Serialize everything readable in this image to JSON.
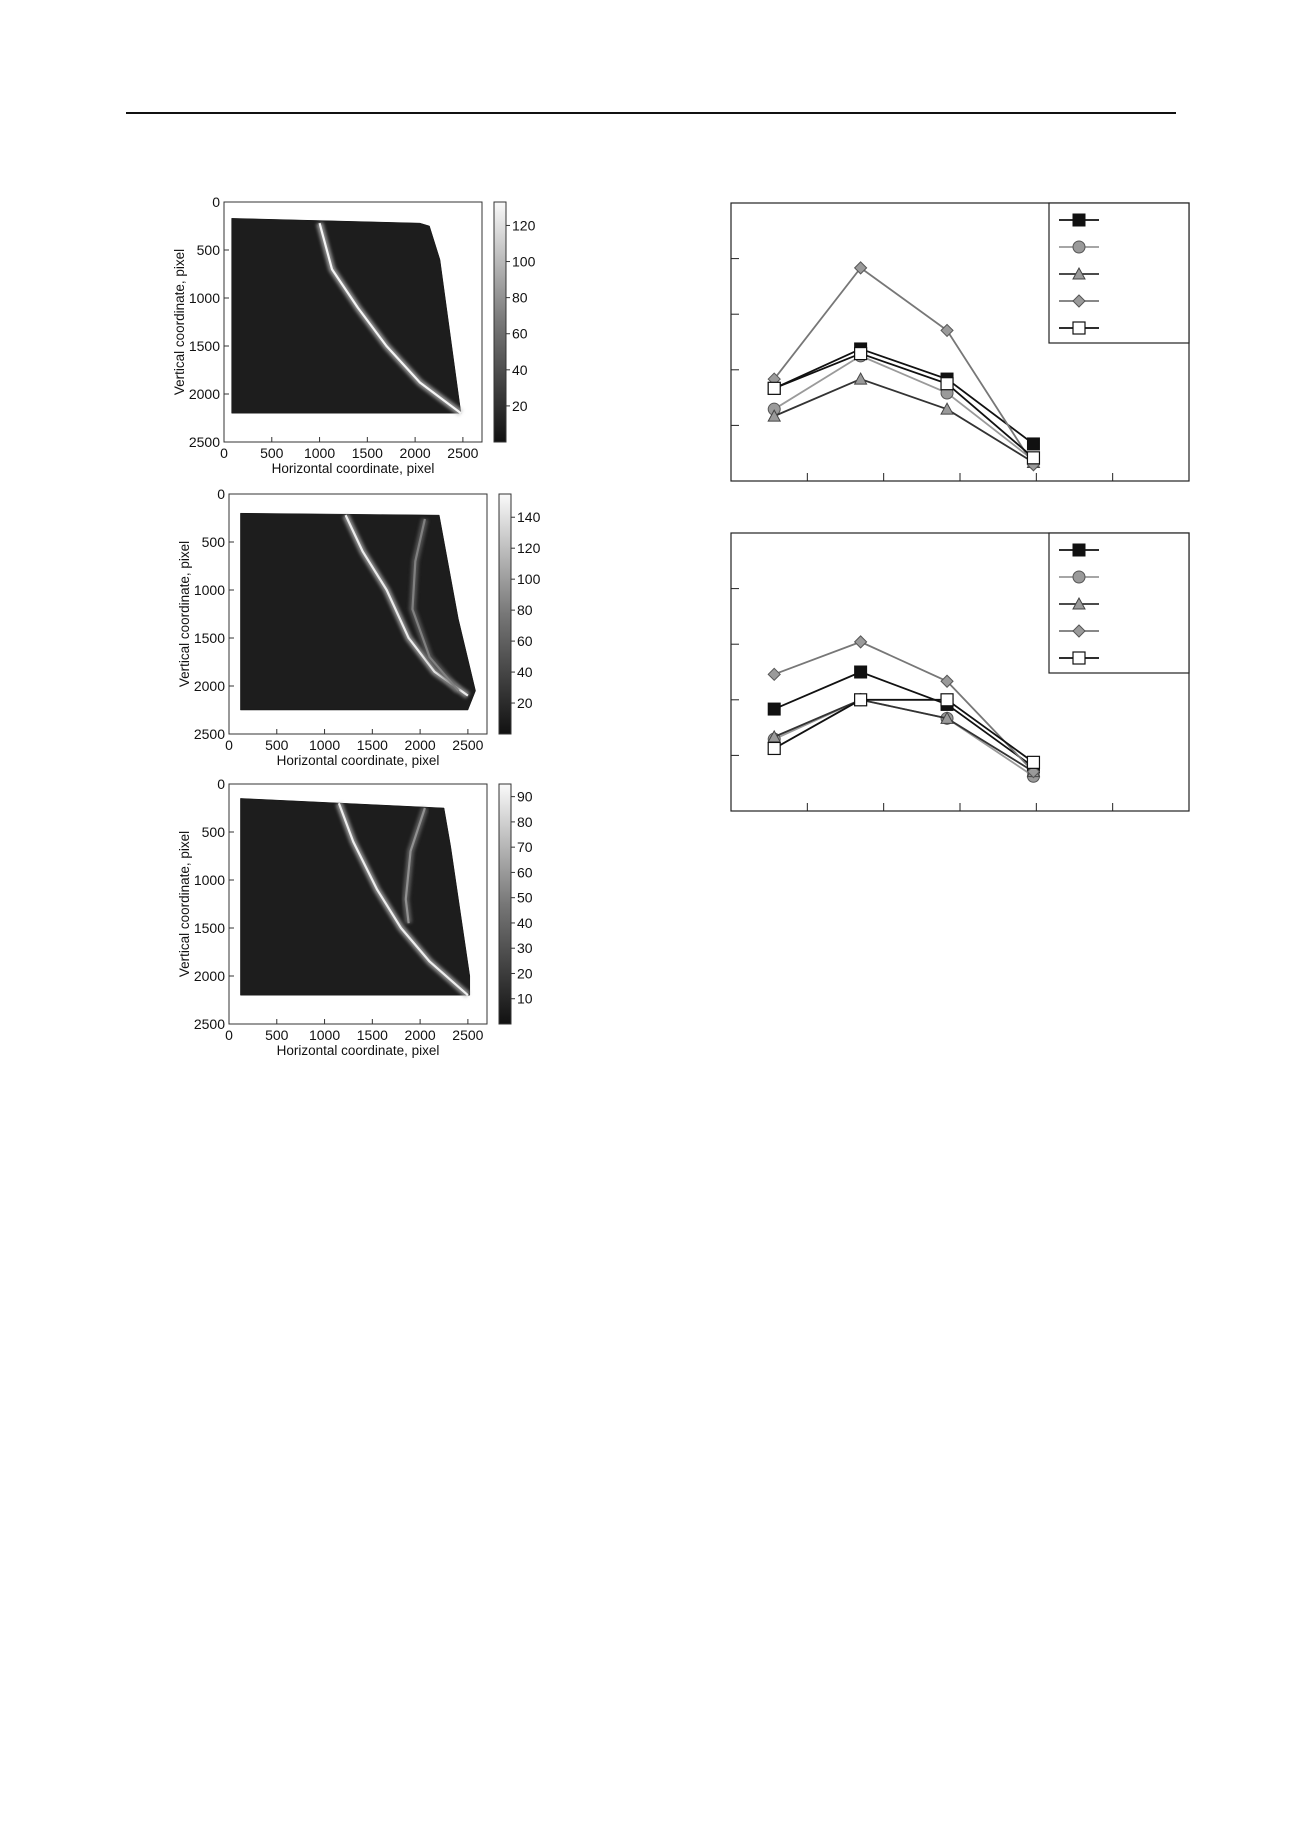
{
  "chart_data": [
    {
      "type": "heatmap",
      "xlabel": "Horizontal coordinate, pixel",
      "ylabel": "Vertical coordinate, pixel",
      "x_ticks": [
        "0",
        "500",
        "1000",
        "1500",
        "2000",
        "2500"
      ],
      "y_ticks": [
        "0",
        "500",
        "1000",
        "1500",
        "2000",
        "2500"
      ],
      "xlim": [
        0,
        2700
      ],
      "ylim": [
        0,
        2500
      ],
      "colorbar_ticks": [
        "120",
        "100",
        "80",
        "60",
        "40",
        "20"
      ],
      "colorbar_values": [
        120,
        100,
        80,
        60,
        40,
        20
      ],
      "colorbar_range": [
        0,
        133
      ],
      "specimen_outline": [
        [
          80,
          170
        ],
        [
          2050,
          220
        ],
        [
          2150,
          250
        ],
        [
          2260,
          600
        ],
        [
          2480,
          2200
        ],
        [
          80,
          2200
        ]
      ],
      "bands": [
        {
          "intensity": 130,
          "points": [
            [
              1000,
              220
            ],
            [
              1130,
              700
            ],
            [
              1400,
              1100
            ],
            [
              1700,
              1500
            ],
            [
              2050,
              1880
            ],
            [
              2480,
              2200
            ]
          ]
        }
      ]
    },
    {
      "type": "heatmap",
      "xlabel": "Horizontal  coordinate, pixel",
      "ylabel": "Vertical coordinate, pixel",
      "x_ticks": [
        "0",
        "500",
        "1000",
        "1500",
        "2000",
        "2500"
      ],
      "y_ticks": [
        "0",
        "500",
        "1000",
        "1500",
        "2000",
        "2500"
      ],
      "xlim": [
        0,
        2700
      ],
      "ylim": [
        0,
        2500
      ],
      "colorbar_ticks": [
        "140",
        "120",
        "100",
        "80",
        "60",
        "40",
        "20"
      ],
      "colorbar_values": [
        140,
        120,
        100,
        80,
        60,
        40,
        20
      ],
      "colorbar_range": [
        0,
        155
      ],
      "specimen_outline": [
        [
          120,
          200
        ],
        [
          2200,
          220
        ],
        [
          2400,
          1300
        ],
        [
          2580,
          2050
        ],
        [
          2500,
          2250
        ],
        [
          120,
          2250
        ]
      ],
      "bands": [
        {
          "intensity": 145,
          "points": [
            [
              1220,
              220
            ],
            [
              1400,
              600
            ],
            [
              1650,
              1000
            ],
            [
              1880,
              1500
            ],
            [
              2150,
              1850
            ],
            [
              2500,
              2100
            ]
          ]
        },
        {
          "intensity": 70,
          "points": [
            [
              2050,
              260
            ],
            [
              1950,
              700
            ],
            [
              1920,
              1200
            ],
            [
              2100,
              1700
            ],
            [
              2400,
              2050
            ]
          ]
        }
      ]
    },
    {
      "type": "heatmap",
      "xlabel": "Horizontal coordinate, pixel",
      "ylabel": "Vertical coordinate, pixel",
      "x_ticks": [
        "0",
        "500",
        "1000",
        "1500",
        "2000",
        "2500"
      ],
      "y_ticks": [
        "0",
        "500",
        "1000",
        "1500",
        "2000",
        "2500"
      ],
      "xlim": [
        0,
        2700
      ],
      "ylim": [
        0,
        2500
      ],
      "colorbar_ticks": [
        "90",
        "80",
        "70",
        "60",
        "50",
        "40",
        "30",
        "20",
        "10"
      ],
      "colorbar_values": [
        90,
        80,
        70,
        60,
        50,
        40,
        30,
        20,
        10
      ],
      "colorbar_range": [
        0,
        95
      ],
      "specimen_outline": [
        [
          120,
          150
        ],
        [
          2250,
          250
        ],
        [
          2320,
          650
        ],
        [
          2520,
          2000
        ],
        [
          2520,
          2200
        ],
        [
          120,
          2200
        ]
      ],
      "bands": [
        {
          "intensity": 90,
          "points": [
            [
              1150,
              200
            ],
            [
              1300,
              600
            ],
            [
              1550,
              1100
            ],
            [
              1800,
              1500
            ],
            [
              2100,
              1850
            ],
            [
              2500,
              2200
            ]
          ]
        },
        {
          "intensity": 50,
          "points": [
            [
              2050,
              250
            ],
            [
              1900,
              700
            ],
            [
              1850,
              1200
            ],
            [
              1880,
              1450
            ]
          ]
        }
      ]
    },
    {
      "type": "line",
      "x": [
        1,
        2,
        3,
        4
      ],
      "xlim": [
        0.5,
        5.8
      ],
      "ylim": [
        0,
        6
      ],
      "x_tick_count": 6,
      "y_tick_count": 5,
      "series": [
        {
          "marker": "square-filled",
          "color": "#111111",
          "values": [
            2.0,
            2.85,
            2.2,
            0.8
          ]
        },
        {
          "marker": "circle",
          "color": "#9a9a9a",
          "values": [
            1.55,
            2.7,
            1.9,
            0.45
          ]
        },
        {
          "marker": "triangle",
          "color": "#333333",
          "values": [
            1.4,
            2.2,
            1.55,
            0.4
          ]
        },
        {
          "marker": "diamond",
          "color": "#777777",
          "values": [
            2.2,
            4.6,
            3.25,
            0.35
          ]
        },
        {
          "marker": "square-open",
          "color": "#111111",
          "values": [
            2.0,
            2.75,
            2.1,
            0.5
          ]
        }
      ]
    },
    {
      "type": "line",
      "x": [
        1,
        2,
        3,
        4
      ],
      "xlim": [
        0.5,
        5.8
      ],
      "ylim": [
        0,
        6
      ],
      "x_tick_count": 6,
      "y_tick_count": 5,
      "series": [
        {
          "marker": "square-filled",
          "color": "#111111",
          "values": [
            2.2,
            3.0,
            2.3,
            0.95
          ]
        },
        {
          "marker": "circle",
          "color": "#9a9a9a",
          "values": [
            1.55,
            2.4,
            2.0,
            0.75
          ]
        },
        {
          "marker": "triangle",
          "color": "#333333",
          "values": [
            1.6,
            2.4,
            2.0,
            0.85
          ]
        },
        {
          "marker": "diamond",
          "color": "#777777",
          "values": [
            2.95,
            3.65,
            2.8,
            0.85
          ]
        },
        {
          "marker": "square-open",
          "color": "#111111",
          "values": [
            1.35,
            2.4,
            2.4,
            1.05
          ]
        }
      ]
    }
  ]
}
